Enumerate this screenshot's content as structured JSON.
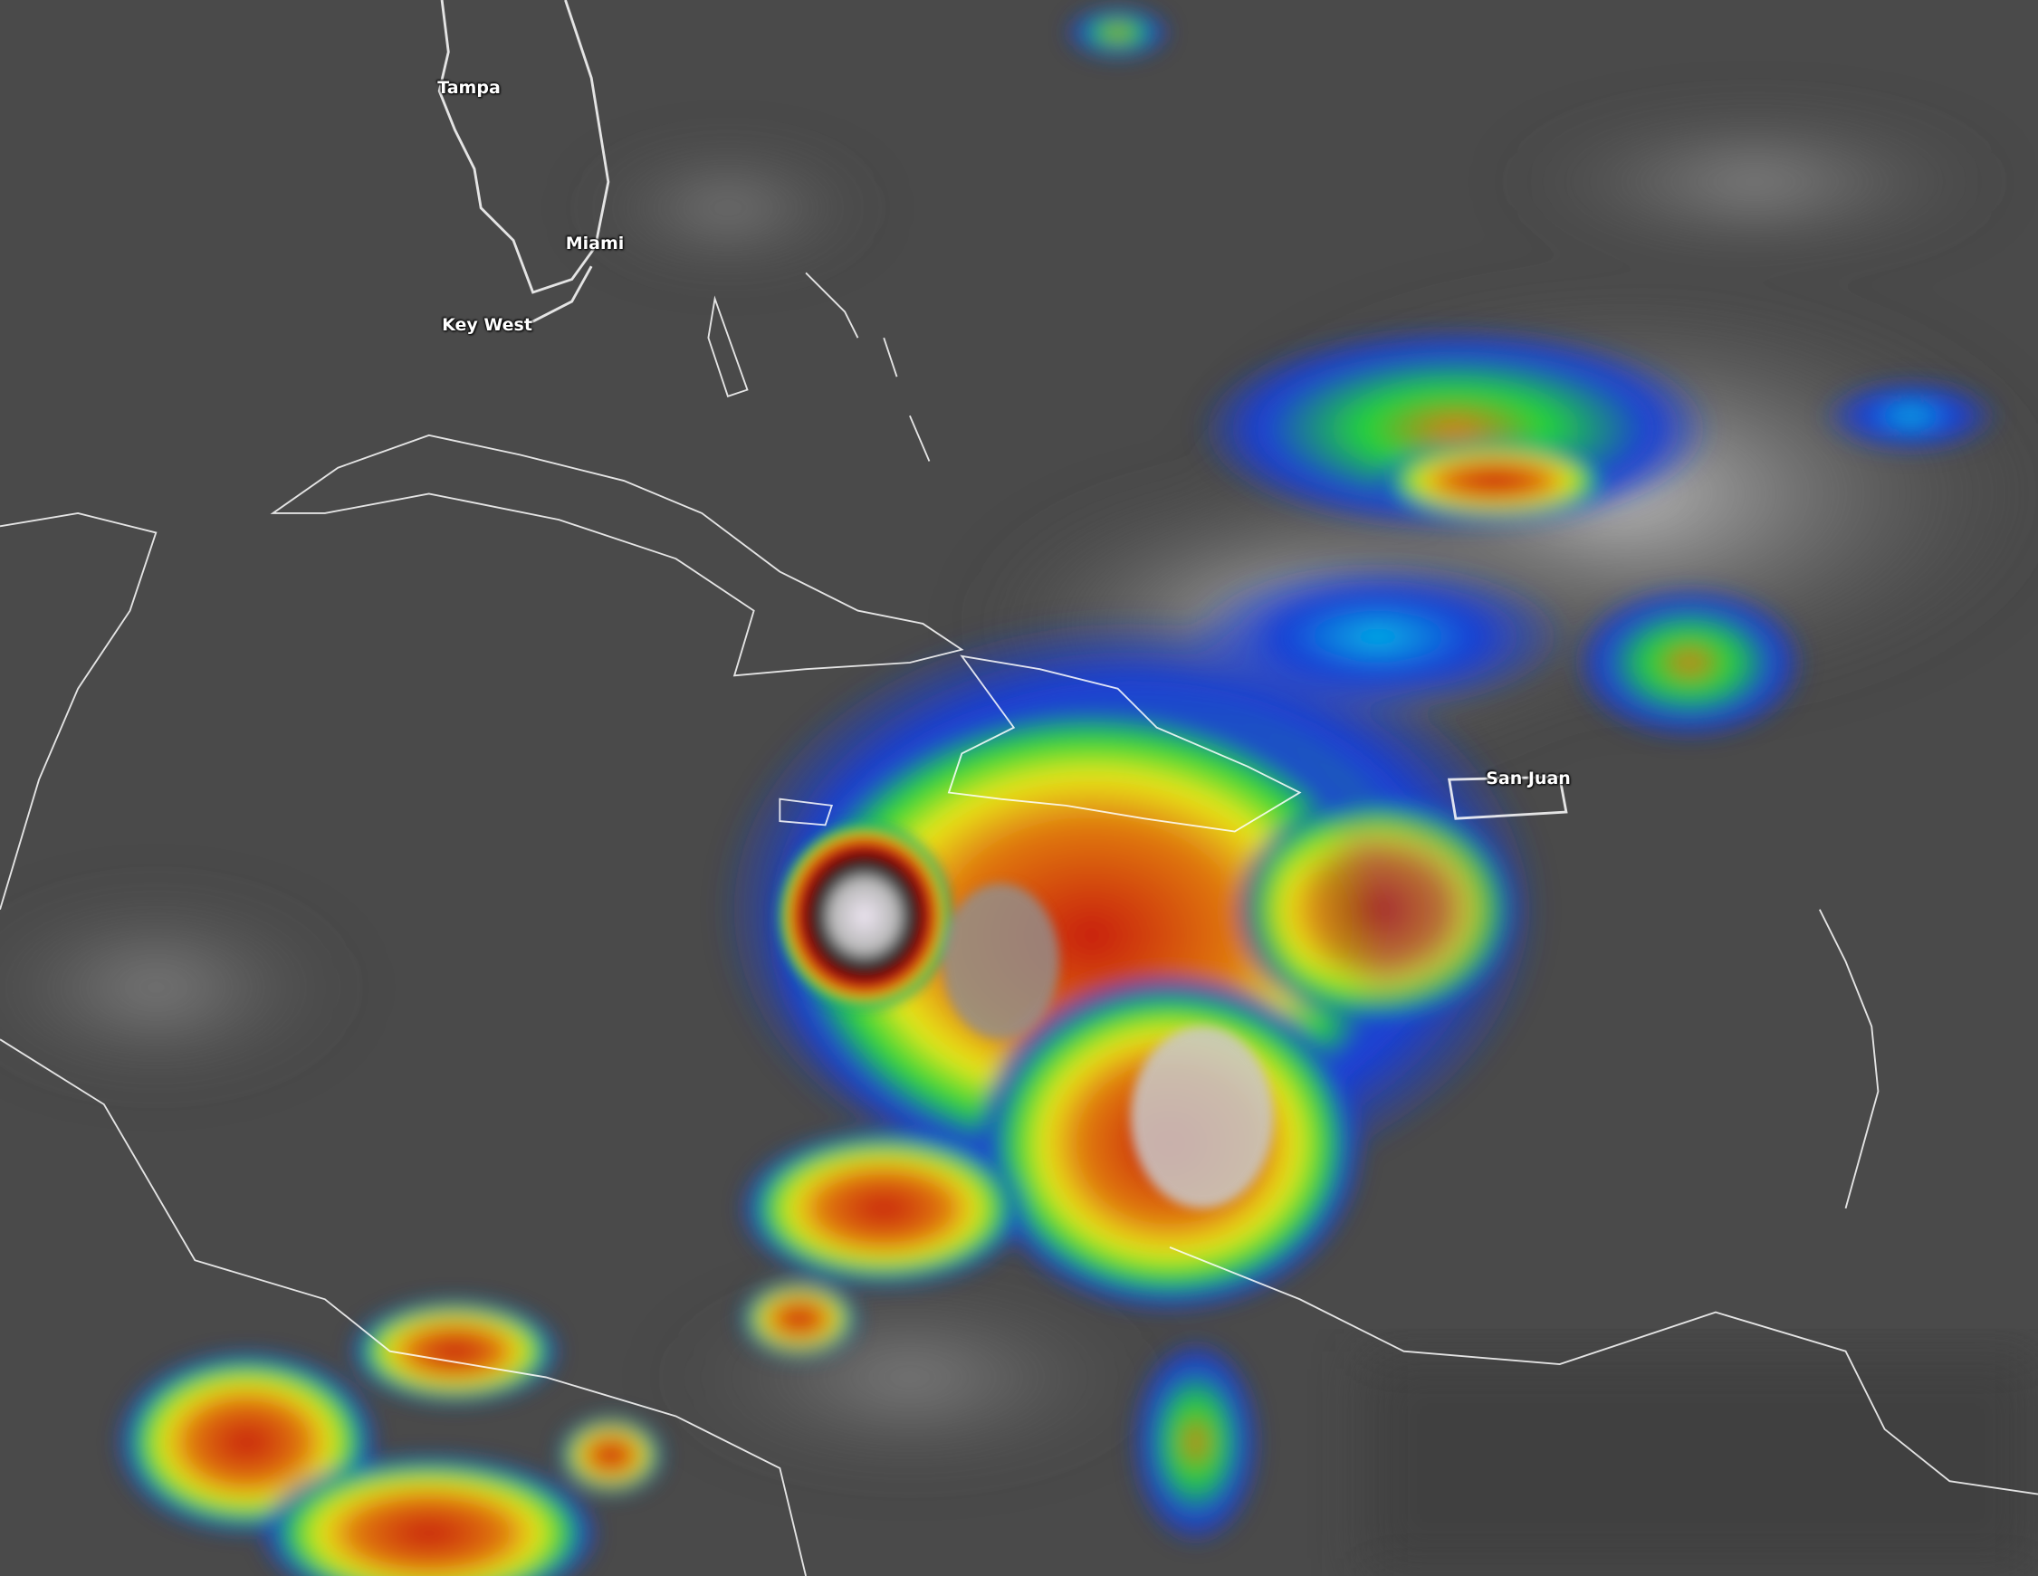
{
  "image": {
    "kind": "infrared satellite imagery",
    "colormap": [
      "#1a3fd6",
      "#00b4e6",
      "#22d43a",
      "#e8e81a",
      "#e07a10",
      "#c81e0a",
      "#5a0a05",
      "#2a2a2a",
      "#e8e0f0"
    ],
    "background_color": "#4a4a4a",
    "coastline_color": "#ffffff"
  },
  "labels": {
    "tampa": "Tampa",
    "miami": "Miami",
    "key_west": "Key West",
    "san_juan": "San Juan"
  }
}
